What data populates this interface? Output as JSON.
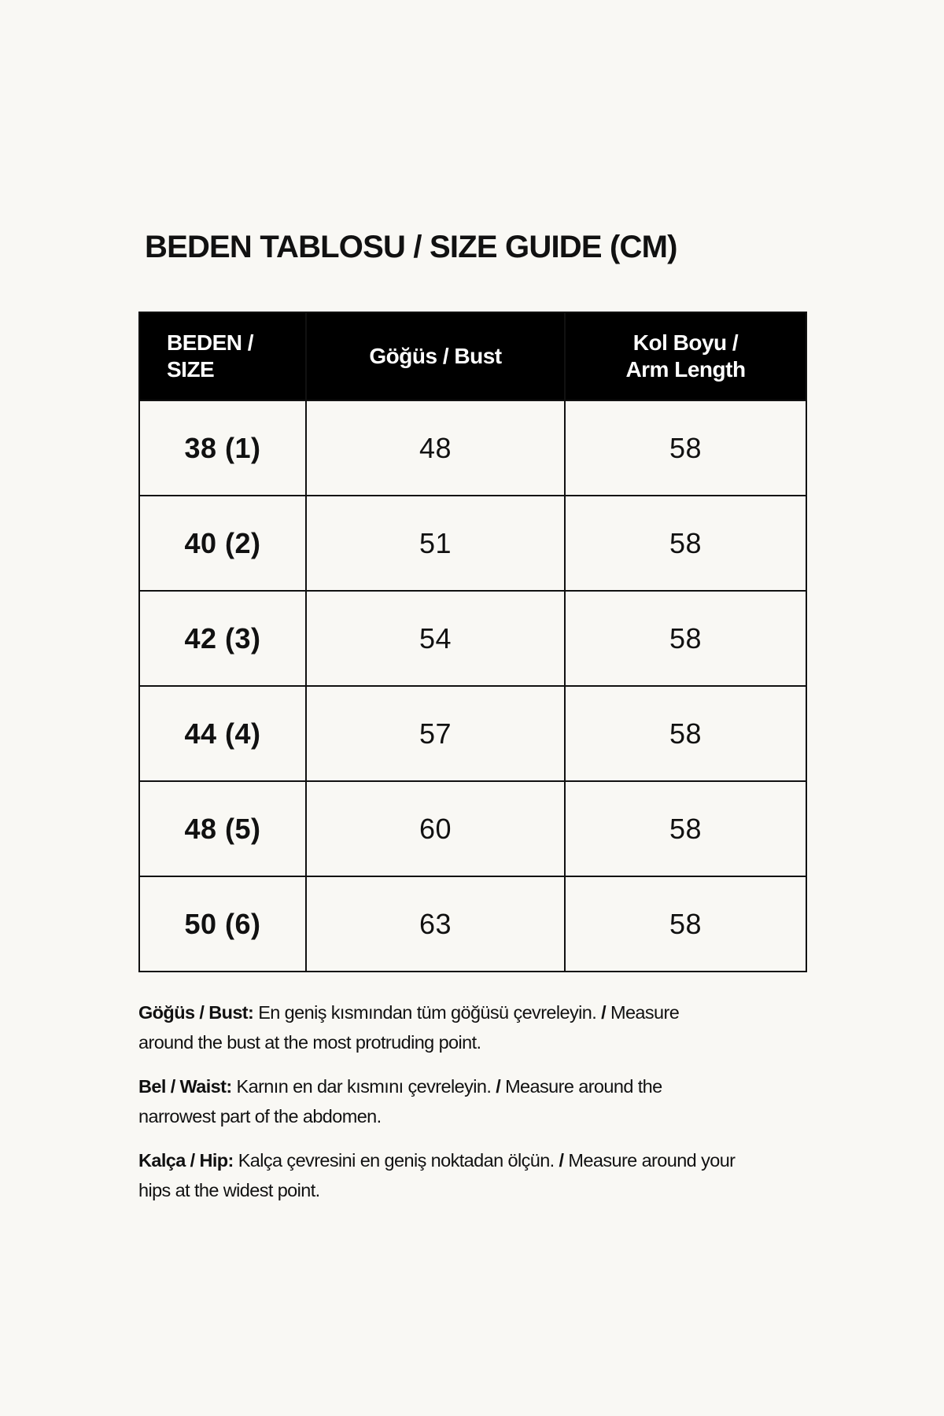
{
  "title": "BEDEN TABLOSU / SIZE GUIDE (CM)",
  "table": {
    "headers": [
      "BEDEN / SIZE",
      "Göğüs / Bust",
      "Kol Boyu / Arm Length"
    ],
    "header_lines": [
      [
        "BEDEN /",
        "SIZE"
      ],
      [
        "Göğüs / Bust"
      ],
      [
        "Kol Boyu /",
        "Arm Length"
      ]
    ],
    "rows": [
      {
        "size": "38 (1)",
        "bust": "48",
        "arm": "58"
      },
      {
        "size": "40 (2)",
        "bust": "51",
        "arm": "58"
      },
      {
        "size": "42 (3)",
        "bust": "54",
        "arm": "58"
      },
      {
        "size": "44 (4)",
        "bust": "57",
        "arm": "58"
      },
      {
        "size": "48 (5)",
        "bust": "60",
        "arm": "58"
      },
      {
        "size": "50 (6)",
        "bust": "63",
        "arm": "58"
      }
    ]
  },
  "notes": [
    {
      "label": "Göğüs / Bust:",
      "tr": "En geniş kısmından tüm göğüsü çevreleyin.",
      "sep": "/",
      "en": "Measure around the bust at the most protruding point."
    },
    {
      "label": "Bel / Waist:",
      "tr": "Karnın en dar kısmını çevreleyin.",
      "sep": "/",
      "en": "Measure around the narrowest part of the abdomen."
    },
    {
      "label": "Kalça / Hip:",
      "tr": "Kalça çevresini en geniş noktadan ölçün.",
      "sep": "/",
      "en": "Measure around your hips at the widest point."
    }
  ],
  "colors": {
    "background": "#f9f8f4",
    "header_bg": "#000000",
    "text": "#111111"
  }
}
